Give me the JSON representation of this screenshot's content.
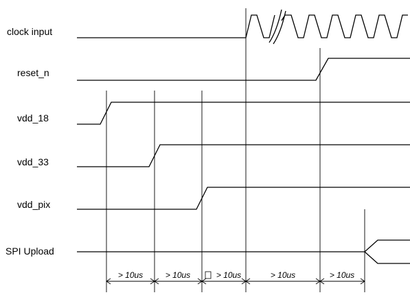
{
  "signals": [
    {
      "name": "clock input"
    },
    {
      "name": "reset_n"
    },
    {
      "name": "vdd_18"
    },
    {
      "name": "vdd_33"
    },
    {
      "name": "vdd_pix"
    },
    {
      "name": "SPI Upload"
    }
  ],
  "intervals": [
    "> 10us",
    "> 10us",
    "> 10us",
    "> 10us",
    "> 10us"
  ]
}
